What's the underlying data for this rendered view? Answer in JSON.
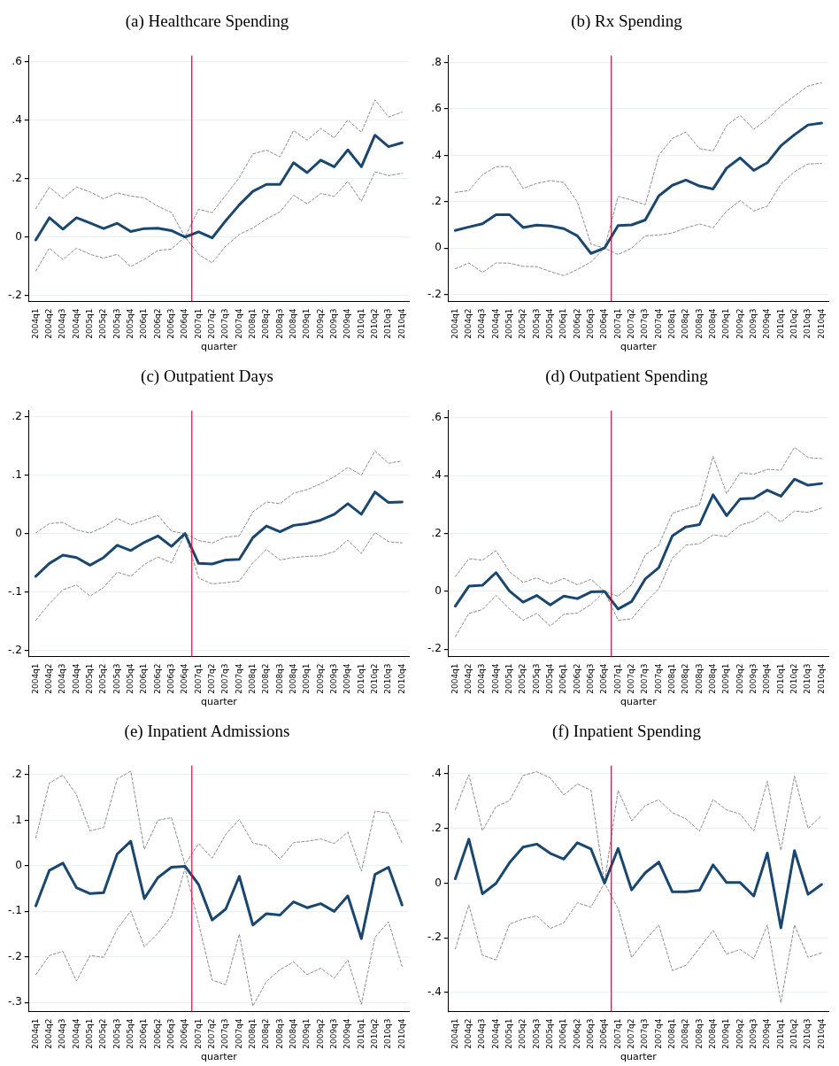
{
  "chart_data": [
    {
      "type": "line",
      "title": "(a) Healthcare Spending",
      "xlabel": "quarter",
      "categories": [
        "2004q1",
        "2004q2",
        "2004q3",
        "2004q4",
        "2005q1",
        "2005q2",
        "2005q3",
        "2005q4",
        "2006q1",
        "2006q2",
        "2006q3",
        "2006q4",
        "2007q1",
        "2007q2",
        "2007q3",
        "2007q4",
        "2008q1",
        "2008q2",
        "2008q3",
        "2008q4",
        "2009q1",
        "2009q2",
        "2009q3",
        "2009q4",
        "2010q1",
        "2010q2",
        "2010q3",
        "2010q4"
      ],
      "ylim": [
        -0.22,
        0.62
      ],
      "yticks": [
        {
          "value": -0.2,
          "label": "-.2"
        },
        {
          "value": 0,
          "label": "0"
        },
        {
          "value": 0.2,
          "label": ".2"
        },
        {
          "value": 0.4,
          "label": ".4"
        },
        {
          "value": 0.6,
          "label": ".6"
        }
      ],
      "grid": "y",
      "ref_lines": [
        {
          "axis": "x",
          "value": "2006q4",
          "color": "#a8123e"
        }
      ],
      "series": [
        {
          "color": "#1a476f",
          "line_style": "solid",
          "values": [
            -0.01,
            0.066,
            0.027,
            0.066,
            0.048,
            0.029,
            0.047,
            0.019,
            0.029,
            0.03,
            0.022,
            0,
            0.018,
            -0.003,
            0.056,
            0.11,
            0.156,
            0.18,
            0.18,
            0.254,
            0.22,
            0.263,
            0.24,
            0.298,
            0.24,
            0.348,
            0.309,
            0.322
          ]
        },
        {
          "color": "#8c8c8c",
          "line_style": "dashed",
          "values": [
            0.097,
            0.17,
            0.132,
            0.171,
            0.154,
            0.131,
            0.151,
            0.14,
            0.134,
            0.105,
            0.084,
            0,
            0.095,
            0.083,
            0.143,
            0.203,
            0.284,
            0.297,
            0.274,
            0.364,
            0.331,
            0.371,
            0.339,
            0.4,
            0.358,
            0.469,
            0.41,
            0.427
          ]
        },
        {
          "color": "#8c8c8c",
          "line_style": "dashed",
          "values": [
            -0.116,
            -0.038,
            -0.077,
            -0.038,
            -0.059,
            -0.072,
            -0.059,
            -0.101,
            -0.076,
            -0.046,
            -0.041,
            0,
            -0.059,
            -0.088,
            -0.031,
            0.009,
            0.031,
            0.062,
            0.086,
            0.143,
            0.114,
            0.149,
            0.139,
            0.19,
            0.122,
            0.223,
            0.21,
            0.218
          ]
        }
      ]
    },
    {
      "type": "line",
      "title": "(b) Rx Spending",
      "xlabel": "quarter",
      "categories": [
        "2004q1",
        "2004q2",
        "2004q3",
        "2004q4",
        "2005q1",
        "2005q2",
        "2005q3",
        "2005q4",
        "2006q1",
        "2006q2",
        "2006q3",
        "2006q4",
        "2007q1",
        "2007q2",
        "2007q3",
        "2007q4",
        "2008q1",
        "2008q2",
        "2008q3",
        "2008q4",
        "2009q1",
        "2009q2",
        "2009q3",
        "2009q4",
        "2010q1",
        "2010q2",
        "2010q3",
        "2010q4"
      ],
      "ylim": [
        -0.23,
        0.83
      ],
      "yticks": [
        {
          "value": -0.2,
          "label": "-.2"
        },
        {
          "value": 0,
          "label": "0"
        },
        {
          "value": 0.2,
          "label": ".2"
        },
        {
          "value": 0.4,
          "label": ".4"
        },
        {
          "value": 0.6,
          "label": ".6"
        },
        {
          "value": 0.8,
          "label": ".8"
        }
      ],
      "grid": "y",
      "ref_lines": [
        {
          "axis": "x",
          "value": "2006q4",
          "color": "#c8102e"
        }
      ],
      "series": [
        {
          "color": "#1a476f",
          "line_style": "solid",
          "values": [
            0.076,
            0.091,
            0.105,
            0.144,
            0.144,
            0.089,
            0.099,
            0.095,
            0.084,
            0.053,
            -0.023,
            0,
            0.097,
            0.1,
            0.121,
            0.225,
            0.271,
            0.293,
            0.268,
            0.255,
            0.345,
            0.389,
            0.335,
            0.368,
            0.441,
            0.489,
            0.531,
            0.539
          ]
        },
        {
          "color": "#8c8c8c",
          "line_style": "dashed",
          "values": [
            0.24,
            0.248,
            0.316,
            0.351,
            0.352,
            0.257,
            0.279,
            0.291,
            0.283,
            0.199,
            0.017,
            0,
            0.223,
            0.207,
            0.187,
            0.4,
            0.473,
            0.5,
            0.429,
            0.419,
            0.529,
            0.572,
            0.512,
            0.556,
            0.612,
            0.656,
            0.699,
            0.713
          ]
        },
        {
          "color": "#8c8c8c",
          "line_style": "dashed",
          "values": [
            -0.089,
            -0.064,
            -0.105,
            -0.064,
            -0.065,
            -0.079,
            -0.08,
            -0.101,
            -0.119,
            -0.092,
            -0.06,
            0,
            -0.028,
            0,
            0.053,
            0.056,
            0.065,
            0.087,
            0.104,
            0.088,
            0.16,
            0.205,
            0.16,
            0.181,
            0.276,
            0.329,
            0.363,
            0.365
          ]
        }
      ]
    },
    {
      "type": "line",
      "title": "(c) Outpatient Days",
      "xlabel": "quarter",
      "categories": [
        "2004q1",
        "2004q2",
        "2004q3",
        "2004q4",
        "2005q1",
        "2005q2",
        "2005q3",
        "2005q4",
        "2006q1",
        "2006q2",
        "2006q3",
        "2006q4",
        "2007q1",
        "2007q2",
        "2007q3",
        "2007q4",
        "2008q1",
        "2008q2",
        "2008q3",
        "2008q4",
        "2009q1",
        "2009q2",
        "2009q3",
        "2009q4",
        "2010q1",
        "2010q2",
        "2010q3",
        "2010q4"
      ],
      "ylim": [
        -0.21,
        0.21
      ],
      "yticks": [
        {
          "value": -0.2,
          "label": "-.2"
        },
        {
          "value": -0.1,
          "label": "-.1"
        },
        {
          "value": 0,
          "label": "0"
        },
        {
          "value": 0.1,
          "label": ".1"
        },
        {
          "value": 0.2,
          "label": ".2"
        }
      ],
      "grid": "y",
      "ref_lines": [
        {
          "axis": "x",
          "value": "2006q4",
          "color": "#e8103e"
        }
      ],
      "series": [
        {
          "color": "#1a476f",
          "line_style": "solid",
          "values": [
            -0.073,
            -0.051,
            -0.037,
            -0.041,
            -0.054,
            -0.041,
            -0.02,
            -0.029,
            -0.015,
            -0.004,
            -0.022,
            0,
            -0.051,
            -0.052,
            -0.045,
            -0.044,
            -0.007,
            0.013,
            0.003,
            0.014,
            0.017,
            0.023,
            0.033,
            0.051,
            0.033,
            0.071,
            0.053,
            0.054
          ]
        },
        {
          "color": "#8c8c8c",
          "line_style": "dashed",
          "values": [
            0.001,
            0.017,
            0.019,
            0.006,
            0.001,
            0.011,
            0.026,
            0.015,
            0.023,
            0.031,
            0.004,
            0,
            -0.012,
            -0.016,
            -0.006,
            -0.004,
            0.037,
            0.054,
            0.051,
            0.069,
            0.075,
            0.085,
            0.097,
            0.113,
            0.1,
            0.141,
            0.12,
            0.124
          ]
        },
        {
          "color": "#8c8c8c",
          "line_style": "dashed",
          "values": [
            -0.148,
            -0.12,
            -0.096,
            -0.088,
            -0.107,
            -0.092,
            -0.066,
            -0.073,
            -0.053,
            -0.04,
            -0.05,
            0,
            -0.076,
            -0.086,
            -0.084,
            -0.081,
            -0.05,
            -0.027,
            -0.045,
            -0.041,
            -0.039,
            -0.038,
            -0.031,
            -0.011,
            -0.034,
            0.002,
            -0.014,
            -0.016
          ]
        }
      ]
    },
    {
      "type": "line",
      "title": "(d) Outpatient Spending",
      "xlabel": "quarter",
      "categories": [
        "2004q1",
        "2004q2",
        "2004q3",
        "2004q4",
        "2005q1",
        "2005q2",
        "2005q3",
        "2005q4",
        "2006q1",
        "2006q2",
        "2006q3",
        "2006q4",
        "2007q1",
        "2007q2",
        "2007q3",
        "2007q4",
        "2008q1",
        "2008q2",
        "2008q3",
        "2008q4",
        "2009q1",
        "2009q2",
        "2009q3",
        "2009q4",
        "2010q1",
        "2010q2",
        "2010q3",
        "2010q4"
      ],
      "ylim": [
        -0.225,
        0.625
      ],
      "yticks": [
        {
          "value": -0.2,
          "label": "-.2"
        },
        {
          "value": 0,
          "label": "0"
        },
        {
          "value": 0.2,
          "label": ".2"
        },
        {
          "value": 0.4,
          "label": ".4"
        },
        {
          "value": 0.6,
          "label": ".6"
        }
      ],
      "grid": "y",
      "ref_lines": [
        {
          "axis": "x",
          "value": "2006q4",
          "color": "#c8102e"
        }
      ],
      "series": [
        {
          "color": "#1a476f",
          "line_style": "solid",
          "values": [
            -0.051,
            0.018,
            0.021,
            0.065,
            0.001,
            -0.037,
            -0.014,
            -0.047,
            -0.016,
            -0.025,
            -0.002,
            0,
            -0.061,
            -0.035,
            0.043,
            0.082,
            0.192,
            0.223,
            0.231,
            0.334,
            0.262,
            0.32,
            0.322,
            0.35,
            0.329,
            0.388,
            0.367,
            0.373
          ]
        },
        {
          "color": "#8c8c8c",
          "line_style": "dashed",
          "values": [
            0.051,
            0.113,
            0.108,
            0.141,
            0.068,
            0.031,
            0.047,
            0.026,
            0.045,
            0.023,
            0.042,
            0,
            -0.017,
            0.023,
            0.126,
            0.16,
            0.27,
            0.286,
            0.299,
            0.467,
            0.338,
            0.41,
            0.405,
            0.422,
            0.419,
            0.498,
            0.463,
            0.459
          ]
        },
        {
          "color": "#8c8c8c",
          "line_style": "dashed",
          "values": [
            -0.157,
            -0.076,
            -0.063,
            -0.014,
            -0.061,
            -0.1,
            -0.076,
            -0.12,
            -0.079,
            -0.075,
            -0.045,
            0,
            -0.1,
            -0.095,
            -0.039,
            0.009,
            0.115,
            0.16,
            0.165,
            0.195,
            0.19,
            0.229,
            0.243,
            0.276,
            0.24,
            0.278,
            0.273,
            0.288
          ]
        }
      ]
    },
    {
      "type": "line",
      "title": "(e) Inpatient Admissions",
      "xlabel": "quarter",
      "categories": [
        "2004q1",
        "2004q2",
        "2004q3",
        "2004q4",
        "2005q1",
        "2005q2",
        "2005q3",
        "2005q4",
        "2006q1",
        "2006q2",
        "2006q3",
        "2006q4",
        "2007q1",
        "2007q2",
        "2007q3",
        "2007q4",
        "2008q1",
        "2008q2",
        "2008q3",
        "2008q4",
        "2009q1",
        "2009q2",
        "2009q3",
        "2009q4",
        "2010q1",
        "2010q2",
        "2010q3",
        "2010q4"
      ],
      "ylim": [
        -0.32,
        0.22
      ],
      "yticks": [
        {
          "value": -0.3,
          "label": "-.3"
        },
        {
          "value": -0.2,
          "label": "-.2"
        },
        {
          "value": -0.1,
          "label": "-.1"
        },
        {
          "value": 0,
          "label": "0"
        },
        {
          "value": 0.1,
          "label": ".1"
        },
        {
          "value": 0.2,
          "label": ".2"
        }
      ],
      "grid": "y",
      "ref_lines": [
        {
          "axis": "x",
          "value": "2006q4",
          "color": "#e8103e"
        }
      ],
      "series": [
        {
          "color": "#1a476f",
          "line_style": "solid",
          "values": [
            -0.088,
            -0.01,
            0.006,
            -0.048,
            -0.061,
            -0.059,
            0.026,
            0.054,
            -0.072,
            -0.026,
            -0.003,
            -0.001,
            -0.041,
            -0.119,
            -0.095,
            -0.023,
            -0.13,
            -0.105,
            -0.108,
            -0.079,
            -0.092,
            -0.083,
            -0.1,
            -0.066,
            -0.16,
            -0.019,
            -0.003,
            -0.086
          ]
        },
        {
          "color": "#8c8c8c",
          "line_style": "dashed",
          "values": [
            0.061,
            0.182,
            0.199,
            0.156,
            0.077,
            0.084,
            0.191,
            0.208,
            0.036,
            0.1,
            0.106,
            0.003,
            0.049,
            0.017,
            0.069,
            0.102,
            0.05,
            0.044,
            0.015,
            0.051,
            0.054,
            0.059,
            0.049,
            0.074,
            -0.012,
            0.12,
            0.116,
            0.05
          ]
        },
        {
          "color": "#8c8c8c",
          "line_style": "dashed",
          "values": [
            -0.239,
            -0.197,
            -0.188,
            -0.253,
            -0.197,
            -0.201,
            -0.139,
            -0.099,
            -0.178,
            -0.148,
            -0.11,
            -0.005,
            -0.127,
            -0.251,
            -0.261,
            -0.15,
            -0.308,
            -0.254,
            -0.228,
            -0.211,
            -0.239,
            -0.225,
            -0.247,
            -0.207,
            -0.304,
            -0.157,
            -0.123,
            -0.221
          ]
        }
      ]
    },
    {
      "type": "line",
      "title": "(f) Inpatient Spending",
      "xlabel": "quarter",
      "categories": [
        "2004q1",
        "2004q2",
        "2004q3",
        "2004q4",
        "2005q1",
        "2005q2",
        "2005q3",
        "2005q4",
        "2006q1",
        "2006q2",
        "2006q3",
        "2006q4",
        "2007q1",
        "2007q2",
        "2007q3",
        "2007q4",
        "2008q1",
        "2008q2",
        "2008q3",
        "2008q4",
        "2009q1",
        "2009q2",
        "2009q3",
        "2009q4",
        "2010q1",
        "2010q2",
        "2010q3",
        "2010q4"
      ],
      "ylim": [
        -0.47,
        0.43
      ],
      "yticks": [
        {
          "value": -0.4,
          "label": "-.4"
        },
        {
          "value": -0.2,
          "label": "-.2"
        },
        {
          "value": 0,
          "label": "0"
        },
        {
          "value": 0.2,
          "label": ".2"
        },
        {
          "value": 0.4,
          "label": ".4"
        }
      ],
      "grid": "y",
      "ref_lines": [
        {
          "axis": "x",
          "value": "2006q4",
          "color": "#a8123e"
        }
      ],
      "series": [
        {
          "color": "#1a476f",
          "line_style": "solid",
          "values": [
            0.016,
            0.161,
            -0.039,
            -0.001,
            0.075,
            0.132,
            0.143,
            0.109,
            0.088,
            0.148,
            0.125,
            0,
            0.127,
            -0.025,
            0.038,
            0.077,
            -0.032,
            -0.032,
            -0.026,
            0.067,
            0.002,
            0.002,
            -0.047,
            0.11,
            -0.164,
            0.119,
            -0.041,
            -0.005
          ]
        },
        {
          "color": "#8c8c8c",
          "line_style": "dashed",
          "values": [
            0.269,
            0.397,
            0.192,
            0.28,
            0.302,
            0.394,
            0.408,
            0.385,
            0.323,
            0.363,
            0.34,
            0,
            0.34,
            0.228,
            0.284,
            0.305,
            0.258,
            0.235,
            0.19,
            0.306,
            0.268,
            0.253,
            0.19,
            0.373,
            0.12,
            0.392,
            0.2,
            0.247
          ]
        },
        {
          "color": "#8c8c8c",
          "line_style": "dashed",
          "values": [
            -0.241,
            -0.08,
            -0.264,
            -0.281,
            -0.15,
            -0.131,
            -0.12,
            -0.166,
            -0.145,
            -0.072,
            -0.088,
            0,
            -0.093,
            -0.272,
            -0.208,
            -0.153,
            -0.32,
            -0.301,
            -0.238,
            -0.173,
            -0.26,
            -0.243,
            -0.276,
            -0.153,
            -0.438,
            -0.153,
            -0.272,
            -0.255
          ]
        }
      ]
    }
  ]
}
